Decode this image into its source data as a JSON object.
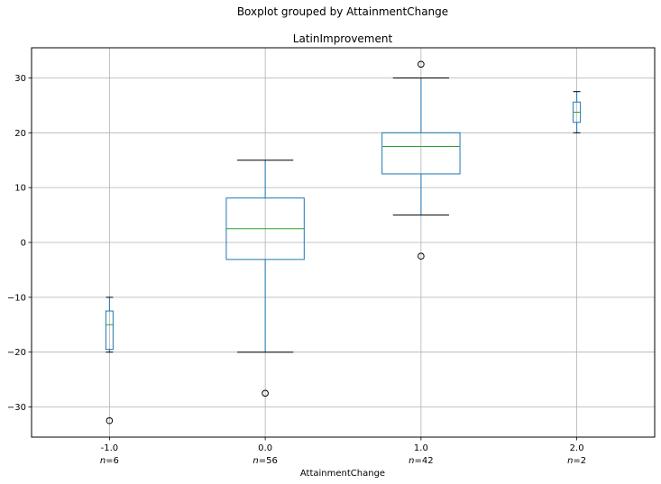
{
  "chart_data": {
    "type": "boxplot",
    "suptitle": "Boxplot grouped by AttainmentChange",
    "title": "LatinImprovement",
    "xlabel": "AttainmentChange",
    "ylabel": "",
    "ylim": [
      -35.5,
      35.5
    ],
    "yticks": [
      -30,
      -20,
      -10,
      0,
      10,
      20,
      30
    ],
    "ytick_labels": [
      "−30",
      "−20",
      "−10",
      "0",
      "10",
      "20",
      "30"
    ],
    "grid": true,
    "colors": {
      "box": "#1f77b4",
      "median": "#2ca02c",
      "whisker": "#1f77b4",
      "cap": "#000000",
      "flier": "#000000",
      "grid": "#b0b0b0"
    },
    "groups": [
      {
        "category": "-1.0",
        "n_label": "=6",
        "whisker_low": -20,
        "q1": -19.5,
        "median": -15,
        "q3": -12.5,
        "whisker_high": -10,
        "fliers": [
          -32.5
        ]
      },
      {
        "category": "0.0",
        "n_label": "=56",
        "whisker_low": -20,
        "q1": -3.1,
        "median": 2.5,
        "q3": 8.1,
        "whisker_high": 15,
        "fliers": [
          -27.5
        ]
      },
      {
        "category": "1.0",
        "n_label": "=42",
        "whisker_low": 5,
        "q1": 12.5,
        "median": 17.5,
        "q3": 20,
        "whisker_high": 30,
        "fliers": [
          -2.5,
          32.5
        ]
      },
      {
        "category": "2.0",
        "n_label": "=2",
        "whisker_low": 20,
        "q1": 21.9,
        "median": 23.75,
        "q3": 25.6,
        "whisker_high": 27.5,
        "fliers": []
      }
    ]
  }
}
